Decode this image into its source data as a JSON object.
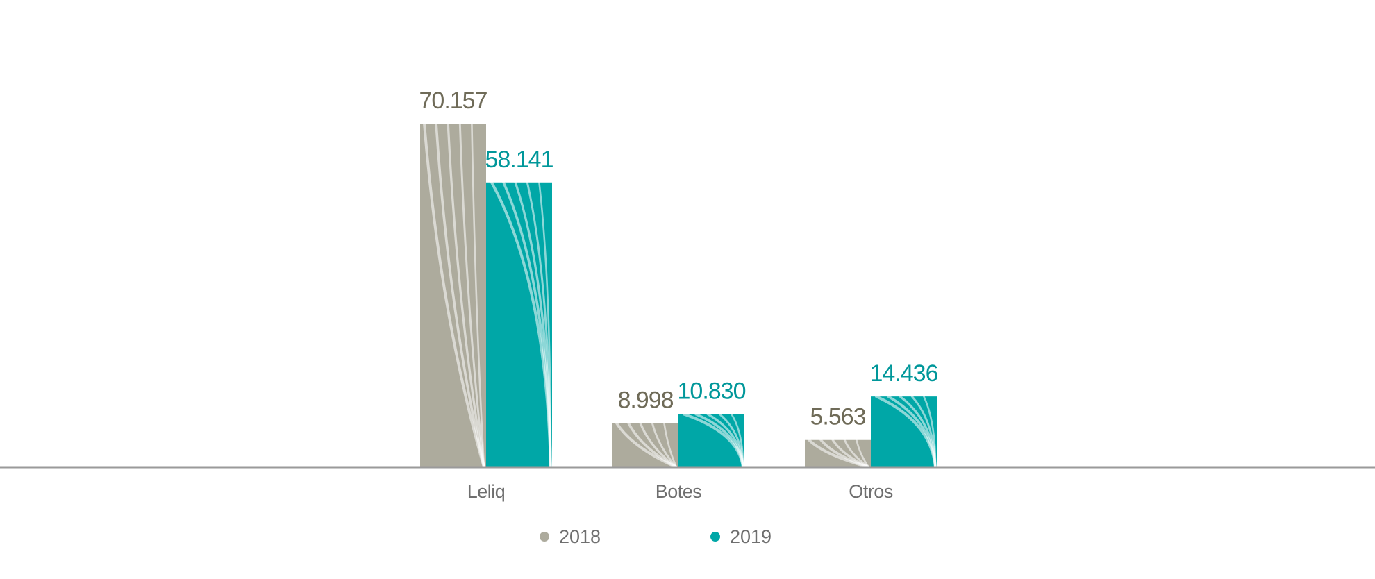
{
  "chart_data": {
    "type": "bar",
    "categories": [
      "Leliq",
      "Botes",
      "Otros"
    ],
    "series": [
      {
        "name": "2018",
        "values": [
          70157,
          8998,
          5563
        ],
        "labels": [
          "70.157",
          "8.998",
          "5.563"
        ],
        "color": "#adab9d",
        "label_color": "#6f6b58"
      },
      {
        "name": "2019",
        "values": [
          58141,
          10830,
          14436
        ],
        "labels": [
          "58.141",
          "10.830",
          "14.436"
        ],
        "color": "#00a7a7",
        "label_color": "#00979a"
      }
    ],
    "title": "",
    "xlabel": "",
    "ylabel": "",
    "ylim": [
      0,
      80000
    ],
    "grid": false,
    "legend": "bottom-center",
    "axis_color": "#9a9a9a",
    "stripe_color": "#ffffff"
  }
}
